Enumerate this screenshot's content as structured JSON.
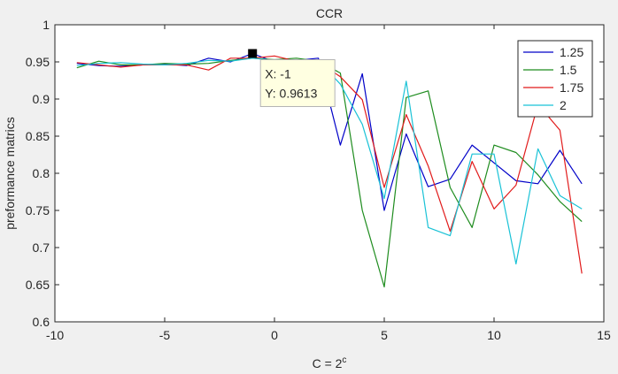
{
  "figure": {
    "background": "#f0f0f0",
    "axes_background": "#ffffff"
  },
  "chart_data": {
    "type": "line",
    "title": "CCR",
    "xlabel_base": "C = 2",
    "xlabel_sup": "c",
    "ylabel": "preformance matrics",
    "xlim": [
      -10,
      15
    ],
    "ylim": [
      0.6,
      1.0
    ],
    "xticks": [
      -10,
      -5,
      0,
      5,
      10,
      15
    ],
    "yticks": [
      0.6,
      0.65,
      0.7,
      0.75,
      0.8,
      0.85,
      0.9,
      0.95,
      1
    ],
    "grid": false,
    "legend_placement": "top-right",
    "x": [
      -9,
      -8,
      -7,
      -6,
      -5,
      -4,
      -3,
      -2,
      -1,
      0,
      1,
      2,
      3,
      4,
      5,
      6,
      7,
      8,
      9,
      10,
      11,
      12,
      13,
      14
    ],
    "series": [
      {
        "name": "1.25",
        "color": "#0000c8",
        "values": [
          0.948,
          0.945,
          0.944,
          0.946,
          0.947,
          0.945,
          0.955,
          0.95,
          0.9613,
          0.95,
          0.952,
          0.955,
          0.838,
          0.934,
          0.75,
          0.853,
          0.782,
          0.792,
          0.838,
          0.814,
          0.79,
          0.786,
          0.831,
          0.786
        ]
      },
      {
        "name": "1.5",
        "color": "#1e8c1e",
        "values": [
          0.942,
          0.951,
          0.946,
          0.946,
          0.948,
          0.947,
          0.948,
          0.952,
          0.955,
          0.953,
          0.955,
          0.951,
          0.935,
          0.75,
          0.647,
          0.902,
          0.911,
          0.781,
          0.727,
          0.838,
          0.828,
          0.798,
          0.762,
          0.735
        ]
      },
      {
        "name": "1.75",
        "color": "#e11b1b",
        "values": [
          0.949,
          0.946,
          0.943,
          0.946,
          0.946,
          0.946,
          0.939,
          0.955,
          0.955,
          0.958,
          0.951,
          0.95,
          0.93,
          0.899,
          0.781,
          0.879,
          0.81,
          0.722,
          0.816,
          0.752,
          0.784,
          0.893,
          0.858,
          0.665
        ]
      },
      {
        "name": "2",
        "color": "#19c2d6",
        "values": [
          0.945,
          0.948,
          0.949,
          0.947,
          0.946,
          0.948,
          0.952,
          0.951,
          0.955,
          0.952,
          0.95,
          0.952,
          0.92,
          0.866,
          0.766,
          0.924,
          0.727,
          0.716,
          0.826,
          0.826,
          0.678,
          0.833,
          0.77,
          0.752
        ]
      }
    ],
    "datatip": {
      "x": -1,
      "y": 0.9613,
      "x_label": "X: -1",
      "y_label": "Y: 0.9613"
    }
  }
}
